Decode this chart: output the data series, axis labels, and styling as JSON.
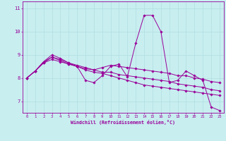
{
  "xlabel": "Windchill (Refroidissement éolien,°C)",
  "background_color": "#c8eef0",
  "line_color": "#990099",
  "grid_color": "#b0dde0",
  "xlim": [
    -0.5,
    23.5
  ],
  "ylim": [
    6.5,
    11.3
  ],
  "yticks": [
    7,
    8,
    9,
    10,
    11
  ],
  "xticks": [
    0,
    1,
    2,
    3,
    4,
    5,
    6,
    7,
    8,
    9,
    10,
    11,
    12,
    13,
    14,
    15,
    16,
    17,
    18,
    19,
    20,
    21,
    22,
    23
  ],
  "series": [
    [
      8.0,
      8.3,
      8.7,
      9.0,
      8.85,
      8.65,
      8.5,
      7.9,
      7.8,
      8.1,
      8.5,
      8.6,
      8.05,
      9.5,
      10.7,
      10.7,
      10.0,
      7.8,
      7.9,
      8.3,
      8.1,
      7.9,
      6.75,
      6.6
    ],
    [
      8.0,
      8.3,
      8.65,
      8.9,
      8.75,
      8.6,
      8.5,
      8.4,
      8.35,
      8.45,
      8.55,
      8.5,
      8.45,
      8.4,
      8.35,
      8.3,
      8.25,
      8.2,
      8.1,
      8.1,
      8.0,
      7.95,
      7.85,
      7.8
    ],
    [
      8.0,
      8.3,
      8.65,
      8.8,
      8.7,
      8.6,
      8.5,
      8.35,
      8.25,
      8.2,
      8.1,
      8.0,
      7.9,
      7.8,
      7.7,
      7.65,
      7.6,
      7.55,
      7.5,
      7.45,
      7.4,
      7.35,
      7.3,
      7.25
    ],
    [
      8.0,
      8.3,
      8.7,
      8.9,
      8.8,
      8.65,
      8.55,
      8.45,
      8.35,
      8.25,
      8.25,
      8.15,
      8.1,
      8.05,
      8.0,
      7.95,
      7.9,
      7.85,
      7.75,
      7.7,
      7.65,
      7.6,
      7.5,
      7.45
    ]
  ]
}
